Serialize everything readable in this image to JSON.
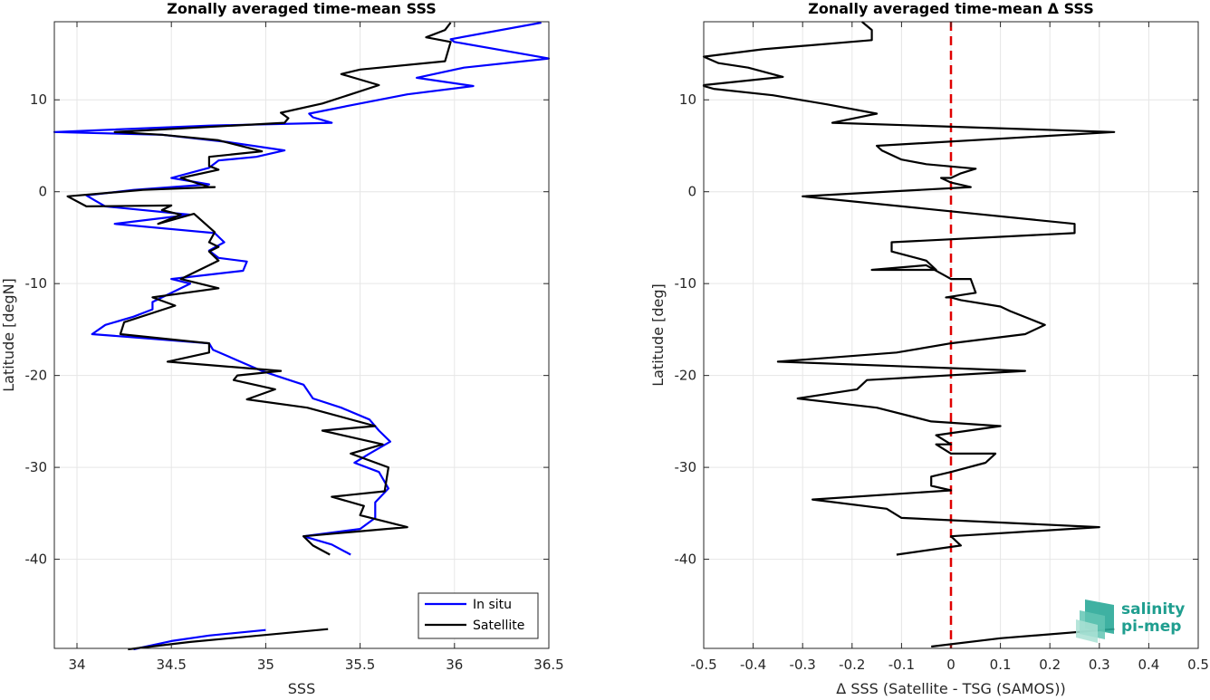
{
  "chart_data": [
    {
      "type": "line",
      "title": "Zonally averaged time-mean SSS",
      "xlabel": "SSS",
      "ylabel": "Latitude [degN]",
      "xlim": [
        33.88,
        36.5
      ],
      "ylim": [
        -49.7,
        18.5
      ],
      "xticks": [
        34,
        34.5,
        35,
        35.5,
        36,
        36.5
      ],
      "yticks": [
        10,
        0,
        -10,
        -20,
        -30,
        -40
      ],
      "grid": true,
      "legend": {
        "placement": "bottom-right",
        "entries": [
          "In situ",
          "Satellite"
        ]
      },
      "series": [
        {
          "name": "In situ",
          "color": "#0000ff",
          "segments": [
            [
              [
                36.46,
                18.4
              ],
              [
                35.98,
                16.6
              ],
              [
                36.0,
                16.3
              ],
              [
                36.5,
                14.5
              ],
              [
                36.05,
                13.5
              ],
              [
                35.8,
                12.4
              ],
              [
                36.1,
                11.5
              ],
              [
                35.75,
                10.6
              ],
              [
                35.45,
                9.4
              ],
              [
                35.23,
                8.5
              ],
              [
                35.25,
                8.1
              ],
              [
                35.35,
                7.5
              ],
              [
                34.7,
                7.2
              ],
              [
                33.88,
                6.5
              ],
              [
                34.45,
                6.2
              ],
              [
                34.8,
                5.4
              ],
              [
                35.1,
                4.5
              ],
              [
                34.95,
                3.8
              ],
              [
                34.75,
                3.4
              ],
              [
                34.7,
                2.6
              ],
              [
                34.5,
                1.5
              ],
              [
                34.7,
                0.8
              ],
              [
                34.3,
                0.2
              ],
              [
                34.05,
                -0.4
              ],
              [
                34.1,
                -1.0
              ],
              [
                34.15,
                -1.6
              ],
              [
                34.6,
                -2.5
              ],
              [
                34.2,
                -3.5
              ],
              [
                34.73,
                -4.5
              ],
              [
                34.78,
                -5.5
              ],
              [
                34.7,
                -6.4
              ],
              [
                34.75,
                -7.2
              ],
              [
                34.9,
                -7.6
              ],
              [
                34.88,
                -8.6
              ],
              [
                34.5,
                -9.5
              ],
              [
                34.6,
                -10.0
              ],
              [
                34.4,
                -12.0
              ],
              [
                34.4,
                -12.8
              ],
              [
                34.3,
                -13.6
              ],
              [
                34.15,
                -14.5
              ],
              [
                34.08,
                -15.5
              ],
              [
                34.4,
                -16.0
              ],
              [
                34.7,
                -16.5
              ],
              [
                34.72,
                -17.2
              ],
              [
                34.9,
                -18.8
              ],
              [
                34.98,
                -19.5
              ],
              [
                35.05,
                -20.0
              ],
              [
                35.2,
                -21.0
              ],
              [
                35.25,
                -22.5
              ],
              [
                35.4,
                -23.5
              ],
              [
                35.55,
                -24.8
              ],
              [
                35.6,
                -26.0
              ],
              [
                35.66,
                -27.2
              ],
              [
                35.55,
                -28.5
              ],
              [
                35.47,
                -29.5
              ],
              [
                35.6,
                -30.5
              ],
              [
                35.65,
                -32.3
              ],
              [
                35.58,
                -33.8
              ],
              [
                35.58,
                -35.5
              ],
              [
                35.5,
                -36.7
              ],
              [
                35.2,
                -37.5
              ],
              [
                35.35,
                -38.4
              ],
              [
                35.45,
                -39.5
              ]
            ],
            [
              [
                34.3,
                -49.8
              ],
              [
                34.5,
                -48.9
              ],
              [
                34.7,
                -48.3
              ],
              [
                35.0,
                -47.7
              ]
            ]
          ]
        },
        {
          "name": "Satellite",
          "color": "#000000",
          "segments": [
            [
              [
                35.98,
                18.4
              ],
              [
                35.95,
                17.6
              ],
              [
                35.85,
                16.8
              ],
              [
                35.98,
                16.3
              ],
              [
                35.95,
                14.2
              ],
              [
                35.5,
                13.3
              ],
              [
                35.4,
                12.8
              ],
              [
                35.6,
                11.6
              ],
              [
                35.45,
                10.6
              ],
              [
                35.3,
                9.6
              ],
              [
                35.08,
                8.6
              ],
              [
                35.12,
                8.0
              ],
              [
                35.1,
                7.5
              ],
              [
                34.2,
                6.5
              ],
              [
                34.45,
                6.2
              ],
              [
                34.75,
                5.6
              ],
              [
                34.98,
                4.4
              ],
              [
                34.7,
                3.8
              ],
              [
                34.7,
                2.8
              ],
              [
                34.75,
                2.4
              ],
              [
                34.55,
                1.5
              ],
              [
                34.7,
                0.5
              ],
              [
                34.73,
                0.5
              ],
              [
                34.35,
                0.2
              ],
              [
                33.95,
                -0.5
              ],
              [
                34.05,
                -1.6
              ],
              [
                34.5,
                -1.5
              ],
              [
                34.45,
                -2.0
              ],
              [
                34.55,
                -2.5
              ],
              [
                34.43,
                -3.5
              ],
              [
                34.62,
                -2.4
              ],
              [
                34.73,
                -4.4
              ],
              [
                34.7,
                -5.5
              ],
              [
                34.75,
                -6.0
              ],
              [
                34.7,
                -6.5
              ],
              [
                34.75,
                -7.5
              ],
              [
                34.7,
                -8.0
              ],
              [
                34.55,
                -9.5
              ],
              [
                34.75,
                -10.5
              ],
              [
                34.4,
                -11.5
              ],
              [
                34.52,
                -12.4
              ],
              [
                34.25,
                -14.2
              ],
              [
                34.23,
                -15.5
              ],
              [
                34.7,
                -16.5
              ],
              [
                34.7,
                -17.5
              ],
              [
                34.48,
                -18.5
              ],
              [
                35.08,
                -19.5
              ],
              [
                34.85,
                -20.0
              ],
              [
                34.83,
                -20.5
              ],
              [
                35.05,
                -21.5
              ],
              [
                34.9,
                -22.6
              ],
              [
                35.22,
                -23.5
              ],
              [
                35.58,
                -25.5
              ],
              [
                35.3,
                -26.0
              ],
              [
                35.62,
                -27.5
              ],
              [
                35.45,
                -28.5
              ],
              [
                35.65,
                -30.0
              ],
              [
                35.63,
                -32.6
              ],
              [
                35.35,
                -33.2
              ],
              [
                35.52,
                -34.2
              ],
              [
                35.5,
                -35.2
              ],
              [
                35.75,
                -36.5
              ],
              [
                35.2,
                -37.5
              ],
              [
                35.25,
                -38.5
              ],
              [
                35.34,
                -39.5
              ]
            ],
            [
              [
                34.27,
                -49.8
              ],
              [
                34.6,
                -49.0
              ],
              [
                35.33,
                -47.6
              ]
            ]
          ]
        }
      ]
    },
    {
      "type": "line",
      "title": "Zonally averaged time-mean Δ SSS",
      "xlabel": "Δ SSS (Satellite - TSG (SAMOS))",
      "ylabel": "Latitude [deg]",
      "xlim": [
        -0.5,
        0.5
      ],
      "ylim": [
        -49.7,
        18.5
      ],
      "xticks": [
        -0.5,
        -0.4,
        -0.3,
        -0.2,
        -0.1,
        0,
        0.1,
        0.2,
        0.3,
        0.4,
        0.5
      ],
      "yticks": [
        10,
        0,
        -10,
        -20,
        -30,
        -40
      ],
      "grid": true,
      "reference_line": {
        "x": 0,
        "color": "#e00000",
        "style": "dashed"
      },
      "series": [
        {
          "color": "#000000",
          "segments": [
            [
              [
                -0.18,
                18.5
              ],
              [
                -0.16,
                17.6
              ],
              [
                -0.16,
                16.5
              ],
              [
                -0.38,
                15.5
              ],
              [
                -0.5,
                14.7
              ],
              [
                -0.47,
                14.0
              ],
              [
                -0.41,
                13.5
              ],
              [
                -0.34,
                12.5
              ],
              [
                -0.5,
                11.6
              ],
              [
                -0.5,
                11.5
              ],
              [
                -0.48,
                11.2
              ],
              [
                -0.36,
                10.5
              ],
              [
                -0.25,
                9.5
              ],
              [
                -0.15,
                8.5
              ],
              [
                -0.24,
                7.5
              ],
              [
                0.33,
                6.5
              ],
              [
                -0.15,
                5.0
              ],
              [
                -0.14,
                4.5
              ],
              [
                -0.1,
                3.5
              ],
              [
                -0.05,
                3.0
              ],
              [
                0.05,
                2.5
              ],
              [
                0.02,
                2.0
              ],
              [
                0.0,
                1.5
              ],
              [
                -0.02,
                1.5
              ],
              [
                0.0,
                1.0
              ],
              [
                0.04,
                0.5
              ],
              [
                -0.3,
                -0.5
              ],
              [
                0.25,
                -3.5
              ],
              [
                0.25,
                -4.5
              ],
              [
                -0.12,
                -5.5
              ],
              [
                -0.12,
                -6.5
              ],
              [
                -0.05,
                -7.5
              ],
              [
                -0.03,
                -8.5
              ],
              [
                -0.1,
                -8.5
              ],
              [
                -0.16,
                -8.5
              ],
              [
                -0.05,
                -8.0
              ],
              [
                0.0,
                -9.5
              ],
              [
                0.0,
                -9.5
              ],
              [
                0.04,
                -9.5
              ],
              [
                0.05,
                -11.0
              ],
              [
                -0.01,
                -11.5
              ],
              [
                0.0,
                -11.5
              ],
              [
                0.02,
                -11.8
              ],
              [
                0.1,
                -12.5
              ],
              [
                0.12,
                -13.0
              ],
              [
                0.19,
                -14.5
              ],
              [
                0.15,
                -15.5
              ],
              [
                0.0,
                -16.5
              ],
              [
                -0.11,
                -17.5
              ],
              [
                -0.35,
                -18.5
              ],
              [
                0.15,
                -19.5
              ],
              [
                -0.17,
                -20.5
              ],
              [
                -0.19,
                -21.5
              ],
              [
                -0.31,
                -22.5
              ],
              [
                -0.15,
                -23.5
              ],
              [
                -0.04,
                -25.0
              ],
              [
                0.1,
                -25.5
              ],
              [
                -0.03,
                -26.5
              ],
              [
                0.0,
                -27.5
              ],
              [
                -0.03,
                -27.5
              ],
              [
                0.0,
                -28.5
              ],
              [
                0.09,
                -28.5
              ],
              [
                0.07,
                -29.5
              ],
              [
                0.0,
                -30.5
              ],
              [
                -0.04,
                -31.0
              ],
              [
                -0.04,
                -32.0
              ],
              [
                0.0,
                -32.5
              ],
              [
                -0.28,
                -33.5
              ],
              [
                -0.13,
                -34.5
              ],
              [
                -0.1,
                -35.5
              ],
              [
                0.3,
                -36.5
              ],
              [
                0.0,
                -37.5
              ],
              [
                0.02,
                -38.5
              ],
              [
                -0.11,
                -39.5
              ]
            ],
            [
              [
                -0.04,
                -49.5
              ],
              [
                0.1,
                -48.6
              ],
              [
                0.33,
                -47.6
              ]
            ]
          ]
        }
      ]
    }
  ],
  "logo": {
    "line1": "salinity",
    "line2": "pi-mep"
  }
}
